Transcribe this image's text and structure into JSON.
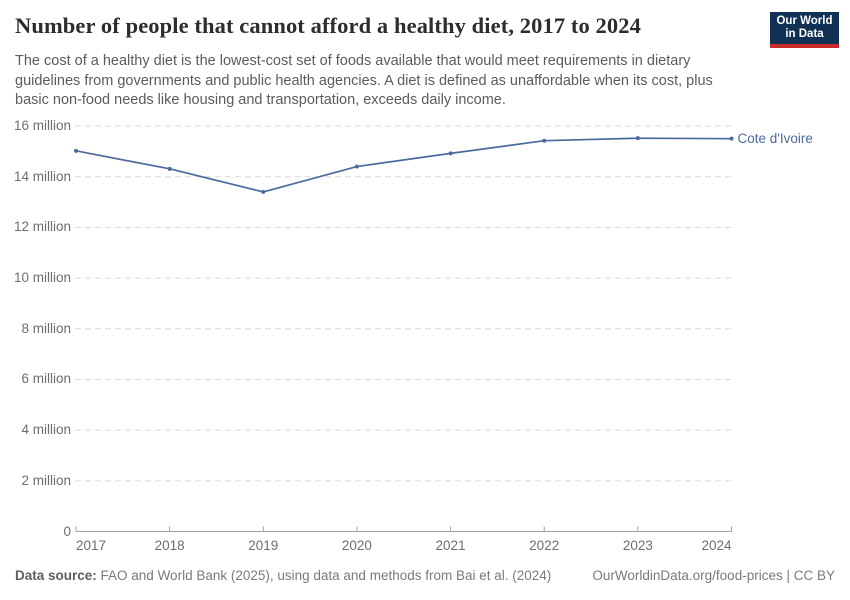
{
  "header": {
    "title": "Number of people that cannot afford a healthy diet, 2017 to 2024",
    "subtitle_lines": [
      "The cost of a healthy diet is the lowest-cost set of foods available that would meet requirements in dietary",
      "guidelines from governments and public health agencies. A diet is defined as unaffordable when its cost, plus",
      "basic non-food needs like housing and transportation, exceeds daily income."
    ],
    "logo": {
      "line1": "Our World",
      "line2": "in Data"
    }
  },
  "chart_data": {
    "type": "line",
    "title": "Number of people that cannot afford a healthy diet, 2017 to 2024",
    "x": [
      "2017",
      "2018",
      "2019",
      "2020",
      "2021",
      "2022",
      "2023",
      "2024"
    ],
    "series": [
      {
        "name": "Cote d'Ivoire",
        "values_millions": [
          15.02,
          14.31,
          13.4,
          14.4,
          14.92,
          15.42,
          15.52,
          15.5
        ]
      }
    ],
    "ylabel": "",
    "xlabel": "",
    "ylim_millions": [
      0,
      16
    ],
    "yticks": [
      {
        "v": 0,
        "label": "0"
      },
      {
        "v": 2,
        "label": "2 million"
      },
      {
        "v": 4,
        "label": "4 million"
      },
      {
        "v": 6,
        "label": "6 million"
      },
      {
        "v": 8,
        "label": "8 million"
      },
      {
        "v": 10,
        "label": "10 million"
      },
      {
        "v": 12,
        "label": "12 million"
      },
      {
        "v": 14,
        "label": "14 million"
      },
      {
        "v": 16,
        "label": "16 million"
      }
    ],
    "grid": "horizontal-dashed",
    "legend_position": "end-of-line"
  },
  "footer": {
    "source_label": "Data source:",
    "source_text": " FAO and World Bank (2025), using data and methods from Bai et al. (2024)",
    "citation_url": "OurWorldinData.org/food-prices",
    "separator": " | ",
    "license": "CC BY"
  },
  "colors": {
    "line": "#4C6A9C",
    "grid": "#d9d9d9",
    "axis": "#a3a3a3",
    "tick_text": "#6e6e6e",
    "logo_bg": "#113154",
    "logo_bar": "#c92a2a"
  }
}
